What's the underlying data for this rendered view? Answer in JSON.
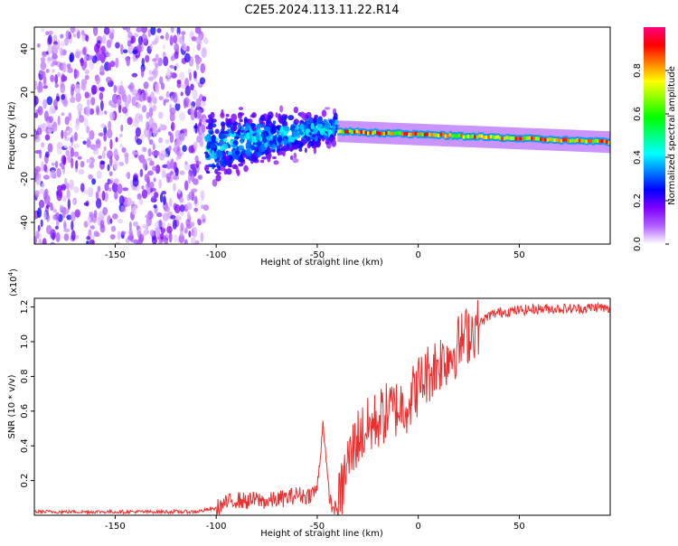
{
  "title": "C2E5.2024.113.11.22.R14",
  "chart_data": [
    {
      "type": "heatmap",
      "xlabel": "Height of straight line (km)",
      "ylabel": "Frequency (Hz)",
      "xlim": [
        -190,
        95
      ],
      "ylim": [
        -50,
        50
      ],
      "xticks": [
        -150,
        -100,
        -50,
        0,
        50
      ],
      "yticks": [
        -40,
        -20,
        0,
        20,
        40
      ],
      "colorbar": {
        "label": "Normalized spectral amplitude",
        "range": [
          0,
          1
        ],
        "ticks": [
          0.0,
          0.2,
          0.4,
          0.6,
          0.8
        ],
        "colors": [
          "#ffffff",
          "#b060ff",
          "#8000ff",
          "#0000ff",
          "#0080ff",
          "#00ffff",
          "#00ff80",
          "#00ff00",
          "#80ff00",
          "#ffff00",
          "#ff8000",
          "#ff0000",
          "#ff0080"
        ]
      },
      "regions": [
        {
          "x_range": [
            -190,
            -105
          ],
          "f_range": [
            -50,
            50
          ],
          "amplitude": 0.1
        },
        {
          "x_range": [
            -105,
            -40
          ],
          "f_center_start": -5,
          "f_center_end": 4,
          "f_spread_start": 22,
          "f_spread_end": 10,
          "amplitude": 0.25
        },
        {
          "x_range": [
            -40,
            95
          ],
          "f_center_start": 2,
          "f_center_end": -3,
          "f_spread": 2,
          "amplitude": 0.9
        }
      ]
    },
    {
      "type": "line",
      "xlabel": "Height of straight line (km)",
      "ylabel": "SNR (10 * v/v)",
      "multiplier": "(x10",
      "multiplier_exp": "4",
      "multiplier_close": ")",
      "xlim": [
        -190,
        95
      ],
      "ylim": [
        0,
        1.25
      ],
      "xticks": [
        -150,
        -100,
        -50,
        0,
        50
      ],
      "yticks": [
        0.2,
        0.4,
        0.6,
        0.8,
        1.0,
        1.2
      ],
      "line_color": "#e83030",
      "series": [
        {
          "x": [
            -190,
            -150,
            -110,
            -100,
            -95,
            -90,
            -85,
            -80,
            -75,
            -70,
            -65,
            -60,
            -55,
            -50,
            -47,
            -45,
            -43,
            -40,
            -35,
            -30,
            -25,
            -20,
            -15,
            -10,
            -5,
            0,
            5,
            10,
            15,
            20,
            25,
            30,
            35,
            40,
            50,
            60,
            70,
            80,
            90,
            95
          ],
          "values": [
            0.02,
            0.02,
            0.02,
            0.04,
            0.07,
            0.09,
            0.08,
            0.09,
            0.08,
            0.09,
            0.1,
            0.12,
            0.11,
            0.15,
            0.55,
            0.2,
            0.05,
            0.03,
            0.3,
            0.45,
            0.5,
            0.55,
            0.6,
            0.62,
            0.65,
            0.75,
            0.82,
            0.88,
            0.92,
            0.98,
            1.05,
            1.1,
            1.15,
            1.17,
            1.18,
            1.19,
            1.19,
            1.19,
            1.2,
            1.18
          ]
        }
      ]
    }
  ]
}
